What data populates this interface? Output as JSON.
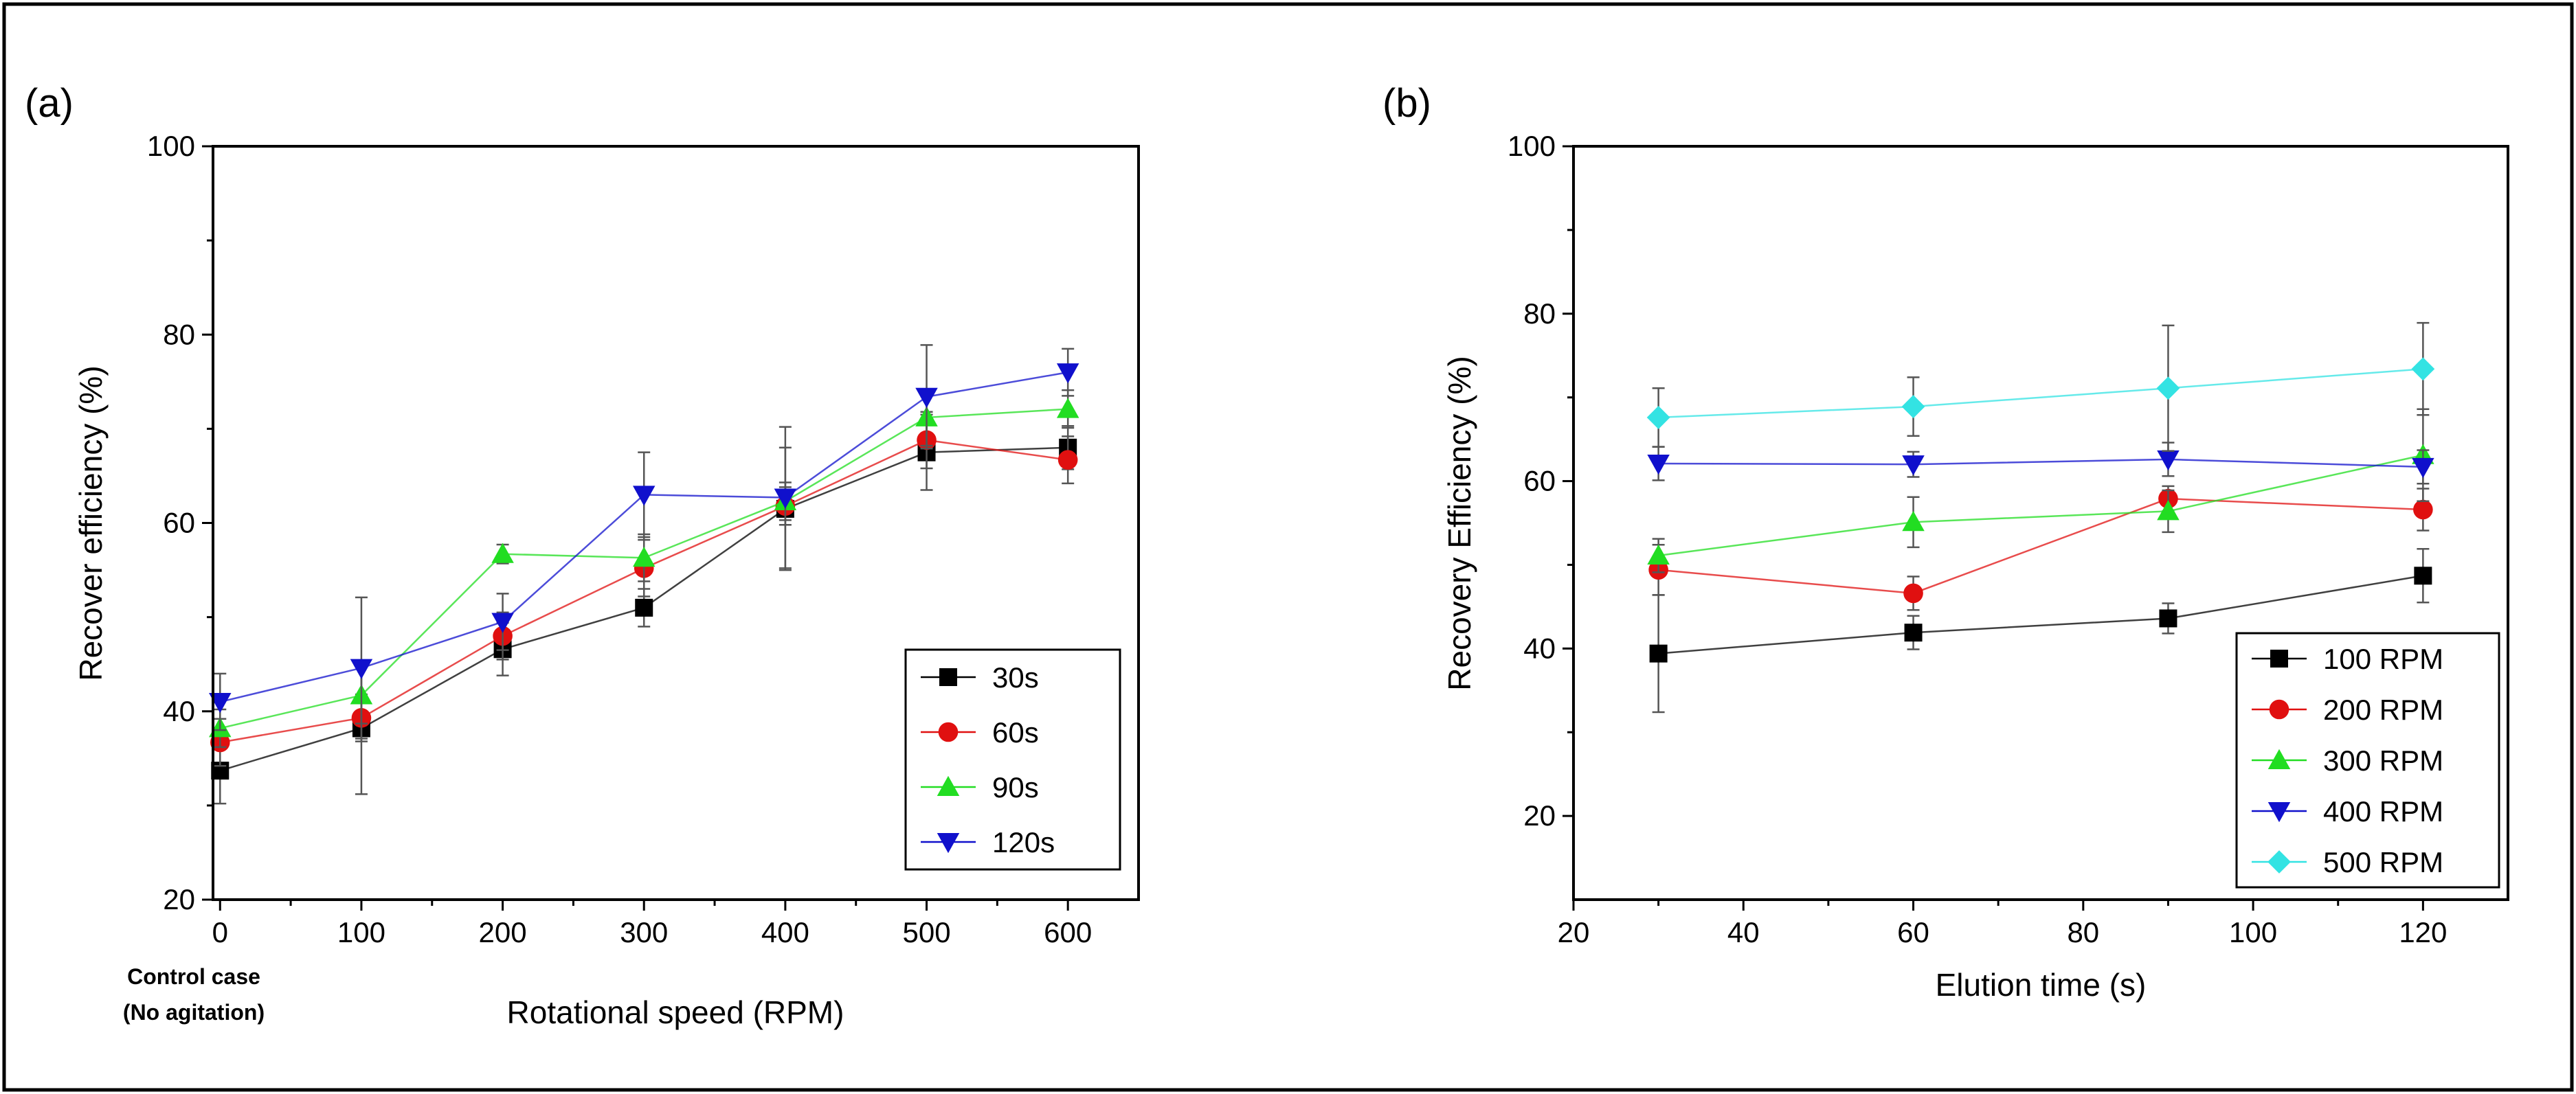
{
  "chart_data": [
    {
      "panel": "(a)",
      "type": "line",
      "xlabel": "Rotational speed (RPM)",
      "ylabel": "Recover efficiency (%)",
      "xlim": [
        -5,
        650
      ],
      "ylim": [
        20,
        100
      ],
      "xticks": [
        0,
        100,
        200,
        300,
        400,
        500,
        600
      ],
      "yticks": [
        20,
        40,
        60,
        80,
        100
      ],
      "x_annotation": [
        "Control case",
        "(No agitation)"
      ],
      "legend_position": "bottom-right",
      "x": [
        0,
        100,
        200,
        300,
        400,
        500,
        600
      ],
      "series": [
        {
          "name": "30s",
          "color": "#000000",
          "marker": "square",
          "values": [
            33.7,
            38.2,
            46.6,
            51.0,
            61.5,
            67.5,
            68.0
          ],
          "errors": [
            3.5,
            7.0,
            2.8,
            2.0,
            6.5,
            4.0,
            2.3
          ]
        },
        {
          "name": "60s",
          "color": "#e01010",
          "marker": "circle",
          "values": [
            36.7,
            39.3,
            48.0,
            55.2,
            61.8,
            68.8,
            66.7
          ],
          "errors": [
            2.5,
            2.5,
            2.5,
            3.0,
            2.0,
            3.0,
            2.5
          ]
        },
        {
          "name": "90s",
          "color": "#22dd22",
          "marker": "triangle-up",
          "values": [
            38.2,
            41.7,
            56.7,
            56.3,
            62.3,
            71.2,
            72.1
          ],
          "errors": [
            2.0,
            3.0,
            1.0,
            2.5,
            2.0,
            3.0,
            2.0
          ]
        },
        {
          "name": "120s",
          "color": "#1010cc",
          "marker": "triangle-down",
          "values": [
            41.0,
            44.6,
            49.5,
            63.0,
            62.7,
            73.4,
            76.0
          ],
          "errors": [
            3.0,
            7.5,
            3.0,
            4.5,
            7.5,
            5.5,
            2.5
          ]
        }
      ]
    },
    {
      "panel": "(b)",
      "type": "line",
      "xlabel": "Elution time (s)",
      "ylabel": "Recovery Efficiency (%)",
      "xlim": [
        20,
        130
      ],
      "ylim": [
        10,
        100
      ],
      "xticks": [
        20,
        40,
        60,
        80,
        100,
        120
      ],
      "yticks": [
        20,
        40,
        60,
        80,
        100
      ],
      "legend_position": "bottom-right",
      "x": [
        30,
        60,
        90,
        120
      ],
      "series": [
        {
          "name": "100 RPM",
          "color": "#000000",
          "marker": "square",
          "values": [
            39.4,
            41.9,
            43.6,
            48.7
          ],
          "errors": [
            7.0,
            2.0,
            1.8,
            3.2
          ]
        },
        {
          "name": "200 RPM",
          "color": "#e01010",
          "marker": "circle",
          "values": [
            49.4,
            46.6,
            57.9,
            56.6
          ],
          "errors": [
            3.0,
            2.0,
            1.5,
            2.5
          ]
        },
        {
          "name": "300 RPM",
          "color": "#22dd22",
          "marker": "triangle-up",
          "values": [
            51.1,
            55.1,
            56.4,
            63.1
          ],
          "errors": [
            2.0,
            3.0,
            2.5,
            5.5
          ]
        },
        {
          "name": "400 RPM",
          "color": "#1010cc",
          "marker": "triangle-down",
          "values": [
            62.1,
            62.0,
            62.6,
            61.7
          ],
          "errors": [
            2.0,
            1.5,
            2.0,
            2.0
          ]
        },
        {
          "name": "500 RPM",
          "color": "#33e3e3",
          "marker": "diamond",
          "values": [
            67.6,
            68.9,
            71.1,
            73.4
          ],
          "errors": [
            3.5,
            3.5,
            7.5,
            5.5
          ]
        }
      ]
    }
  ]
}
